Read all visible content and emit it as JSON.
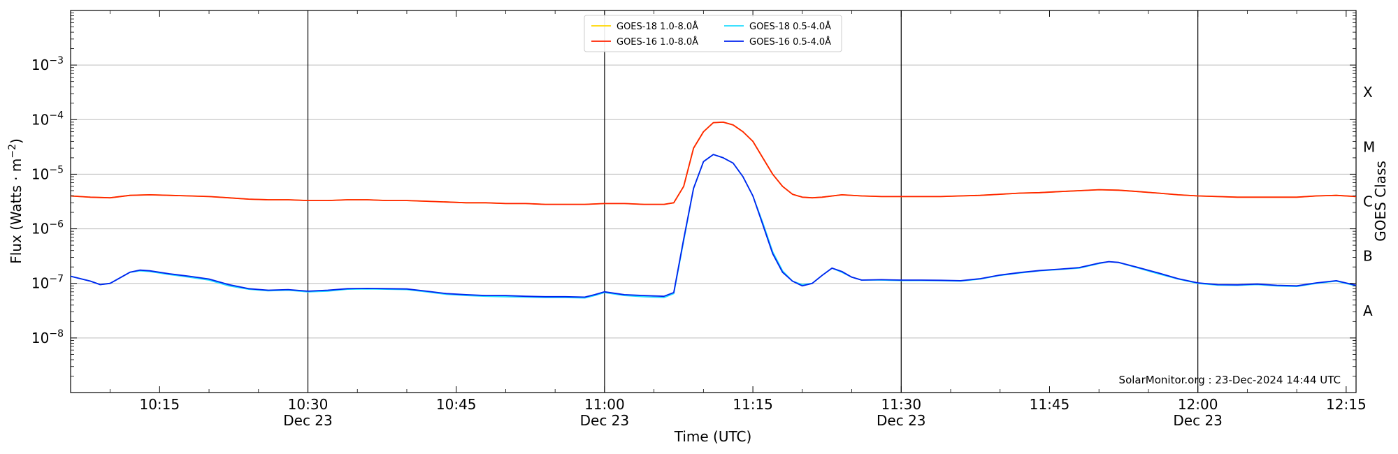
{
  "chart_data": {
    "type": "line",
    "title": "",
    "xlabel": "Time (UTC)",
    "ylabel_base": "Flux (Watts · m",
    "ylabel_exp": "−2",
    "ylabel_close": ")",
    "y2label": "GOES Class",
    "x_date": "Dec 23",
    "xlim": [
      "10:06",
      "12:16"
    ],
    "ylog": true,
    "ylim": [
      1e-09,
      0.01
    ],
    "grid": {
      "horizontal": true,
      "vertical": "half-hour markers"
    },
    "x_ticks": [
      {
        "time": "10:15",
        "label": "10:15",
        "sub": ""
      },
      {
        "time": "10:30",
        "label": "10:30",
        "sub": "Dec 23"
      },
      {
        "time": "10:45",
        "label": "10:45",
        "sub": ""
      },
      {
        "time": "11:00",
        "label": "11:00",
        "sub": "Dec 23"
      },
      {
        "time": "11:15",
        "label": "11:15",
        "sub": ""
      },
      {
        "time": "11:30",
        "label": "11:30",
        "sub": "Dec 23"
      },
      {
        "time": "11:45",
        "label": "11:45",
        "sub": ""
      },
      {
        "time": "12:00",
        "label": "12:00",
        "sub": "Dec 23"
      },
      {
        "time": "12:15",
        "label": "12:15",
        "sub": ""
      }
    ],
    "vlines": [
      "10:30",
      "11:00",
      "11:30",
      "12:00"
    ],
    "y_ticks": [
      {
        "value": 1e-08,
        "base": "10",
        "exp": "−8"
      },
      {
        "value": 1e-07,
        "base": "10",
        "exp": "−7"
      },
      {
        "value": 1e-06,
        "base": "10",
        "exp": "−6"
      },
      {
        "value": 1e-05,
        "base": "10",
        "exp": "−5"
      },
      {
        "value": 0.0001,
        "base": "10",
        "exp": "−4"
      },
      {
        "value": 0.001,
        "base": "10",
        "exp": "−3"
      }
    ],
    "classes": [
      {
        "label": "A",
        "value": 3.16e-08
      },
      {
        "label": "B",
        "value": 3.16e-07
      },
      {
        "label": "C",
        "value": 3.16e-06
      },
      {
        "label": "M",
        "value": 3.16e-05
      },
      {
        "label": "X",
        "value": 0.000316
      }
    ],
    "legend": {
      "position": "top-center",
      "entries": [
        {
          "label": "GOES-18 1.0-8.0Å",
          "color": "#ffd700"
        },
        {
          "label": "GOES-16 1.0-8.0Å",
          "color": "#ff2200"
        },
        {
          "label": "GOES-18 0.5-4.0Å",
          "color": "#22ddff"
        },
        {
          "label": "GOES-16 0.5-4.0Å",
          "color": "#0022ee"
        }
      ]
    },
    "series": [
      {
        "name": "GOES-18 1.0-8.0Å",
        "color": "#ffd700",
        "x": [
          "10:06",
          "10:08",
          "10:10",
          "10:12",
          "10:14",
          "10:16",
          "10:18",
          "10:20",
          "10:22",
          "10:24",
          "10:26",
          "10:28",
          "10:30",
          "10:32",
          "10:34",
          "10:36",
          "10:38",
          "10:40",
          "10:42",
          "10:44",
          "10:46",
          "10:48",
          "10:50",
          "10:52",
          "10:54",
          "10:56",
          "10:58",
          "11:00",
          "11:02",
          "11:04",
          "11:06",
          "11:07",
          "11:08",
          "11:09",
          "11:10",
          "11:11",
          "11:12",
          "11:13",
          "11:14",
          "11:15",
          "11:16",
          "11:17",
          "11:18",
          "11:19",
          "11:20",
          "11:21",
          "11:22",
          "11:24",
          "11:26",
          "11:28",
          "11:30",
          "11:32",
          "11:34",
          "11:36",
          "11:38",
          "11:40",
          "11:42",
          "11:44",
          "11:46",
          "11:48",
          "11:50",
          "11:52",
          "11:54",
          "11:56",
          "11:58",
          "12:00",
          "12:02",
          "12:04",
          "12:06",
          "12:08",
          "12:10",
          "12:12",
          "12:14",
          "12:16"
        ],
        "values": [
          4e-06,
          3.8e-06,
          3.7e-06,
          4.1e-06,
          4.2e-06,
          4.1e-06,
          4e-06,
          3.9e-06,
          3.7e-06,
          3.5e-06,
          3.4e-06,
          3.4e-06,
          3.3e-06,
          3.3e-06,
          3.4e-06,
          3.4e-06,
          3.3e-06,
          3.3e-06,
          3.2e-06,
          3.1e-06,
          3e-06,
          3e-06,
          2.9e-06,
          2.9e-06,
          2.8e-06,
          2.8e-06,
          2.8e-06,
          2.9e-06,
          2.9e-06,
          2.8e-06,
          2.8e-06,
          3e-06,
          6e-06,
          3e-05,
          6e-05,
          8.8e-05,
          9e-05,
          8e-05,
          6e-05,
          4e-05,
          2e-05,
          1e-05,
          6e-06,
          4.3e-06,
          3.8e-06,
          3.7e-06,
          3.8e-06,
          4.2e-06,
          4e-06,
          3.9e-06,
          3.9e-06,
          3.9e-06,
          3.9e-06,
          4e-06,
          4.1e-06,
          4.3e-06,
          4.5e-06,
          4.6e-06,
          4.8e-06,
          5e-06,
          5.2e-06,
          5.1e-06,
          4.8e-06,
          4.5e-06,
          4.2e-06,
          4e-06,
          3.9e-06,
          3.8e-06,
          3.8e-06,
          3.8e-06,
          3.8e-06,
          4e-06,
          4.1e-06,
          3.9e-06
        ]
      },
      {
        "name": "GOES-16 1.0-8.0Å",
        "color": "#ff2200",
        "x": [
          "10:06",
          "10:08",
          "10:10",
          "10:12",
          "10:14",
          "10:16",
          "10:18",
          "10:20",
          "10:22",
          "10:24",
          "10:26",
          "10:28",
          "10:30",
          "10:32",
          "10:34",
          "10:36",
          "10:38",
          "10:40",
          "10:42",
          "10:44",
          "10:46",
          "10:48",
          "10:50",
          "10:52",
          "10:54",
          "10:56",
          "10:58",
          "11:00",
          "11:02",
          "11:04",
          "11:06",
          "11:07",
          "11:08",
          "11:09",
          "11:10",
          "11:11",
          "11:12",
          "11:13",
          "11:14",
          "11:15",
          "11:16",
          "11:17",
          "11:18",
          "11:19",
          "11:20",
          "11:21",
          "11:22",
          "11:24",
          "11:26",
          "11:28",
          "11:30",
          "11:32",
          "11:34",
          "11:36",
          "11:38",
          "11:40",
          "11:42",
          "11:44",
          "11:46",
          "11:48",
          "11:50",
          "11:52",
          "11:54",
          "11:56",
          "11:58",
          "12:00",
          "12:02",
          "12:04",
          "12:06",
          "12:08",
          "12:10",
          "12:12",
          "12:14",
          "12:16"
        ],
        "values": [
          4e-06,
          3.8e-06,
          3.7e-06,
          4.1e-06,
          4.2e-06,
          4.1e-06,
          4e-06,
          3.9e-06,
          3.7e-06,
          3.5e-06,
          3.4e-06,
          3.4e-06,
          3.3e-06,
          3.3e-06,
          3.4e-06,
          3.4e-06,
          3.3e-06,
          3.3e-06,
          3.2e-06,
          3.1e-06,
          3e-06,
          3e-06,
          2.9e-06,
          2.9e-06,
          2.8e-06,
          2.8e-06,
          2.8e-06,
          2.9e-06,
          2.9e-06,
          2.8e-06,
          2.8e-06,
          3e-06,
          6e-06,
          3e-05,
          6e-05,
          8.8e-05,
          9e-05,
          8e-05,
          6e-05,
          4e-05,
          2e-05,
          1e-05,
          6e-06,
          4.3e-06,
          3.8e-06,
          3.7e-06,
          3.8e-06,
          4.2e-06,
          4e-06,
          3.9e-06,
          3.9e-06,
          3.9e-06,
          3.9e-06,
          4e-06,
          4.1e-06,
          4.3e-06,
          4.5e-06,
          4.6e-06,
          4.8e-06,
          5e-06,
          5.2e-06,
          5.1e-06,
          4.8e-06,
          4.5e-06,
          4.2e-06,
          4e-06,
          3.9e-06,
          3.8e-06,
          3.8e-06,
          3.8e-06,
          3.8e-06,
          4e-06,
          4.1e-06,
          3.9e-06
        ]
      },
      {
        "name": "GOES-18 0.5-4.0Å",
        "color": "#22ddff",
        "x": [
          "10:06",
          "10:08",
          "10:09",
          "10:10",
          "10:12",
          "10:13",
          "10:14",
          "10:16",
          "10:18",
          "10:20",
          "10:22",
          "10:24",
          "10:26",
          "10:28",
          "10:30",
          "10:32",
          "10:34",
          "10:36",
          "10:38",
          "10:40",
          "10:42",
          "10:44",
          "10:46",
          "10:48",
          "10:50",
          "10:52",
          "10:54",
          "10:56",
          "10:58",
          "10:59",
          "11:00",
          "11:02",
          "11:04",
          "11:06",
          "11:07",
          "11:08",
          "11:09",
          "11:10",
          "11:11",
          "11:12",
          "11:13",
          "11:14",
          "11:15",
          "11:16",
          "11:17",
          "11:18",
          "11:19",
          "11:20",
          "11:21",
          "11:22",
          "11:23",
          "11:24",
          "11:25",
          "11:26",
          "11:28",
          "11:30",
          "11:32",
          "11:34",
          "11:36",
          "11:38",
          "11:40",
          "11:42",
          "11:44",
          "11:46",
          "11:48",
          "11:50",
          "11:51",
          "11:52",
          "11:54",
          "11:56",
          "11:58",
          "12:00",
          "12:02",
          "12:04",
          "12:06",
          "12:08",
          "12:10",
          "12:12",
          "12:14",
          "12:16"
        ],
        "values": [
          1.35e-07,
          1.1e-07,
          9.5e-08,
          1e-07,
          1.6e-07,
          1.7e-07,
          1.65e-07,
          1.45e-07,
          1.3e-07,
          1.15e-07,
          9e-08,
          7.8e-08,
          7.3e-08,
          7.5e-08,
          7e-08,
          7.2e-08,
          7.8e-08,
          7.9e-08,
          7.8e-08,
          7.7e-08,
          7e-08,
          6.3e-08,
          6e-08,
          5.8e-08,
          5.7e-08,
          5.6e-08,
          5.5e-08,
          5.5e-08,
          5.4e-08,
          6e-08,
          6.8e-08,
          6e-08,
          5.7e-08,
          5.5e-08,
          6.5e-08,
          6e-07,
          5.5e-06,
          1.7e-05,
          2.3e-05,
          2e-05,
          1.6e-05,
          9e-06,
          4e-06,
          1.3e-06,
          3.8e-07,
          1.7e-07,
          1.1e-07,
          9.5e-08,
          1e-07,
          1.4e-07,
          1.9e-07,
          1.6e-07,
          1.3e-07,
          1.15e-07,
          1.15e-07,
          1.13e-07,
          1.13e-07,
          1.12e-07,
          1.1e-07,
          1.2e-07,
          1.4e-07,
          1.55e-07,
          1.7e-07,
          1.8e-07,
          1.9e-07,
          2.3e-07,
          2.5e-07,
          2.4e-07,
          1.9e-07,
          1.5e-07,
          1.2e-07,
          1e-07,
          9.3e-08,
          9.2e-08,
          9.5e-08,
          9e-08,
          8.8e-08,
          1e-07,
          1.1e-07,
          9e-08
        ]
      },
      {
        "name": "GOES-16 0.5-4.0Å",
        "color": "#0022ee",
        "x": [
          "10:06",
          "10:08",
          "10:09",
          "10:10",
          "10:12",
          "10:13",
          "10:14",
          "10:16",
          "10:18",
          "10:20",
          "10:22",
          "10:24",
          "10:26",
          "10:28",
          "10:30",
          "10:32",
          "10:34",
          "10:36",
          "10:38",
          "10:40",
          "10:42",
          "10:44",
          "10:46",
          "10:48",
          "10:50",
          "10:52",
          "10:54",
          "10:56",
          "10:58",
          "10:59",
          "11:00",
          "11:02",
          "11:04",
          "11:06",
          "11:07",
          "11:08",
          "11:09",
          "11:10",
          "11:11",
          "11:12",
          "11:13",
          "11:14",
          "11:15",
          "11:16",
          "11:17",
          "11:18",
          "11:19",
          "11:20",
          "11:21",
          "11:22",
          "11:23",
          "11:24",
          "11:25",
          "11:26",
          "11:28",
          "11:30",
          "11:32",
          "11:34",
          "11:36",
          "11:38",
          "11:40",
          "11:42",
          "11:44",
          "11:46",
          "11:48",
          "11:50",
          "11:51",
          "11:52",
          "11:54",
          "11:56",
          "11:58",
          "12:00",
          "12:02",
          "12:04",
          "12:06",
          "12:08",
          "12:10",
          "12:12",
          "12:14",
          "12:16"
        ],
        "values": [
          1.35e-07,
          1.1e-07,
          9.5e-08,
          1e-07,
          1.6e-07,
          1.75e-07,
          1.7e-07,
          1.5e-07,
          1.35e-07,
          1.2e-07,
          9.5e-08,
          8e-08,
          7.5e-08,
          7.7e-08,
          7.2e-08,
          7.5e-08,
          8e-08,
          8.1e-08,
          8e-08,
          7.9e-08,
          7.2e-08,
          6.5e-08,
          6.2e-08,
          6e-08,
          6e-08,
          5.8e-08,
          5.7e-08,
          5.7e-08,
          5.6e-08,
          6.2e-08,
          7e-08,
          6.2e-08,
          6e-08,
          5.8e-08,
          6.8e-08,
          6.5e-07,
          5.5e-06,
          1.7e-05,
          2.3e-05,
          2e-05,
          1.6e-05,
          9e-06,
          4e-06,
          1.2e-06,
          3.5e-07,
          1.6e-07,
          1.1e-07,
          9e-08,
          1e-07,
          1.4e-07,
          1.9e-07,
          1.65e-07,
          1.3e-07,
          1.15e-07,
          1.17e-07,
          1.15e-07,
          1.15e-07,
          1.14e-07,
          1.12e-07,
          1.22e-07,
          1.42e-07,
          1.58e-07,
          1.72e-07,
          1.82e-07,
          1.95e-07,
          2.35e-07,
          2.5e-07,
          2.42e-07,
          1.95e-07,
          1.55e-07,
          1.22e-07,
          1.02e-07,
          9.5e-08,
          9.4e-08,
          9.7e-08,
          9.2e-08,
          9e-08,
          1.02e-07,
          1.12e-07,
          9.2e-08
        ]
      }
    ],
    "annotation": "SolarMonitor.org : 23-Dec-2024 14:44 UTC"
  }
}
